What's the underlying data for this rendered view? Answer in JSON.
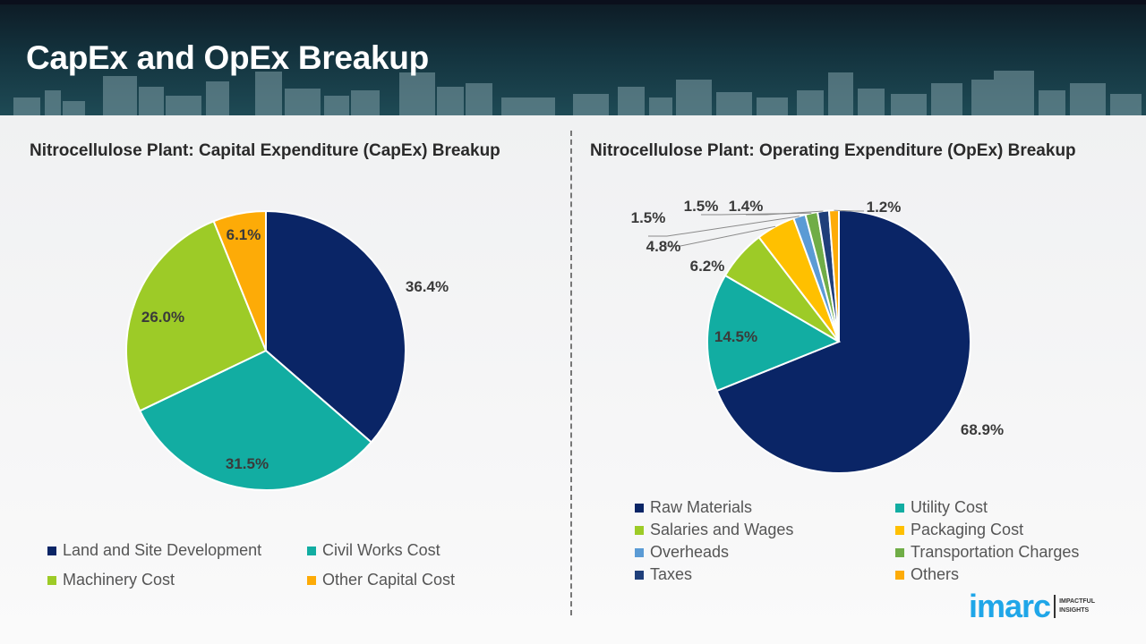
{
  "header": {
    "title": "CapEx and OpEx Breakup"
  },
  "logo": {
    "brand": "imarc",
    "tagline_1": "IMPACTFUL",
    "tagline_2": "INSIGHTS"
  },
  "chart_data": [
    {
      "type": "pie",
      "title": "Nitrocellulose Plant: Capital Expenditure (CapEx) Breakup",
      "categories": [
        "Land and Site Development",
        "Civil Works Cost",
        "Machinery Cost",
        "Other Capital Cost"
      ],
      "values": [
        36.4,
        31.5,
        26.0,
        6.1
      ],
      "labels": [
        "36.4%",
        "31.5%",
        "26.0%",
        "6.1%"
      ],
      "colors": [
        "#0a2566",
        "#12ada2",
        "#9dcb27",
        "#fdab07"
      ],
      "legend_position": "bottom"
    },
    {
      "type": "pie",
      "title": "Nitrocellulose Plant: Operating Expenditure (OpEx) Breakup",
      "categories": [
        "Raw Materials",
        "Utility Cost",
        "Salaries and Wages",
        "Packaging Cost",
        "Overheads",
        "Transportation Charges",
        "Taxes",
        "Others"
      ],
      "values": [
        68.9,
        14.5,
        6.2,
        4.8,
        1.5,
        1.5,
        1.4,
        1.2
      ],
      "labels": [
        "68.9%",
        "14.5%",
        "6.2%",
        "4.8%",
        "1.5%",
        "1.5%",
        "1.4%",
        "1.2%"
      ],
      "colors": [
        "#0a2566",
        "#12ada2",
        "#9dcb27",
        "#ffc000",
        "#5b9bd5",
        "#70ad47",
        "#1f3f7a",
        "#fdab07"
      ],
      "legend_position": "bottom"
    }
  ]
}
